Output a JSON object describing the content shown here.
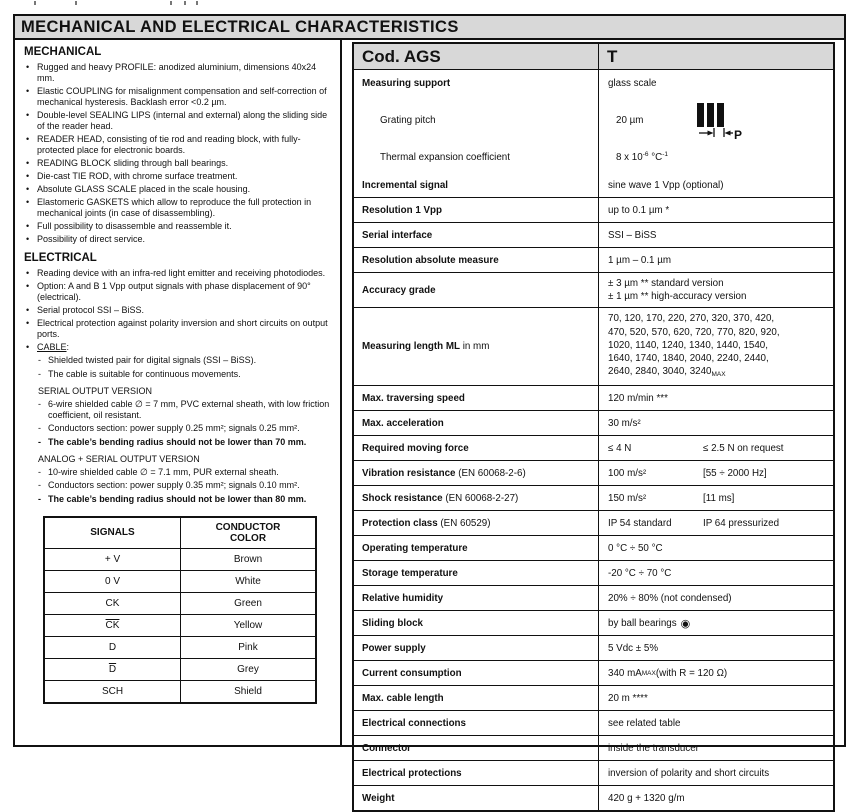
{
  "page": {
    "title": "MECHANICAL AND ELECTRICAL CHARACTERISTICS"
  },
  "glyphs": {
    "bullet": "•",
    "dash": "-",
    "ball_bearing": "◉"
  },
  "colors": {
    "header_bg": "#d8d8d8",
    "border": "#111111",
    "text": "#111111"
  },
  "left": {
    "mechanical": {
      "heading": "MECHANICAL",
      "bullets": [
        {
          "text": "Rugged and heavy PROFILE: anodized aluminium, dimensions 40x24 mm."
        },
        {
          "text": "Elastic COUPLING for misalignment compensation and self-correction of mechanical hysteresis. Backlash error <0.2 µm."
        },
        {
          "text": "Double-level SEALING LIPS (internal and external) along the sliding side of the reader head."
        },
        {
          "text": "READER HEAD, consisting of tie rod and reading block, with fully-protected place for electronic boards."
        },
        {
          "text": "READING BLOCK sliding through ball bearings."
        },
        {
          "text": "Die-cast TIE ROD, with chrome surface treatment."
        },
        {
          "text": "Absolute GLASS SCALE placed in the scale housing."
        },
        {
          "text": "Elastomeric GASKETS which allow to reproduce the full protection in mechanical joints (in case of disassembling)."
        },
        {
          "text": "Full possibility to disassemble and reassemble it."
        },
        {
          "text": "Possibility of direct service."
        }
      ]
    },
    "electrical": {
      "heading": "ELECTRICAL",
      "bullets": [
        {
          "text": "Reading device with an infra-red light emitter and receiving photodiodes."
        },
        {
          "text": "Option: A and B 1 Vpp output signals with phase displacement of 90° (electrical)."
        },
        {
          "text": "Serial protocol SSI – BiSS."
        },
        {
          "text": "Electrical protection against polarity inversion and short circuits on output ports."
        },
        {
          "underline": "CABLE",
          "text": ":"
        }
      ],
      "cable_items": [
        {
          "text": "Shielded twisted pair for digital signals (SSI – BiSS)."
        },
        {
          "text": "The cable is suitable for continuous movements."
        }
      ],
      "serial_section": {
        "heading": "SERIAL OUTPUT VERSION",
        "items": [
          {
            "text": "6-wire shielded cable ∅ = 7 mm, PVC external sheath, with low friction coefficient, oil resistant."
          },
          {
            "text": "Conductors section: power supply 0.25 mm²; signals 0.25 mm²."
          },
          {
            "text": "The cable’s bending radius should not be lower than 70 mm.",
            "bold": true
          }
        ]
      },
      "analog_section": {
        "heading": "ANALOG + SERIAL OUTPUT VERSION",
        "items": [
          {
            "text": "10-wire shielded cable ∅ = 7.1 mm, PUR external sheath."
          },
          {
            "text": "Conductors section: power supply 0.35 mm²; signals 0.10 mm²."
          },
          {
            "text": "The cable’s bending radius should not be lower than 80 mm.",
            "bold": true
          }
        ]
      }
    },
    "signals_table": {
      "headers": [
        "SIGNALS",
        "CONDUCTOR COLOR"
      ],
      "rows": [
        {
          "signal": "+ V",
          "color": "Brown"
        },
        {
          "signal": "0 V",
          "color": "White"
        },
        {
          "signal": "CK",
          "color": "Green"
        },
        {
          "signal": "CK",
          "overline": true,
          "color": "Yellow"
        },
        {
          "signal": "D",
          "color": "Pink"
        },
        {
          "signal": "D",
          "overline": true,
          "color": "Grey"
        },
        {
          "signal": "SCH",
          "color": "Shield"
        }
      ]
    }
  },
  "spec_table": {
    "header": {
      "code_label": "Cod. AGS",
      "model": "T"
    },
    "measuring_support": {
      "label_main": "Measuring support",
      "value_main": "glass scale",
      "label_pitch": "Grating pitch",
      "value_pitch": "20 µm",
      "pitch_icon_label": "P",
      "label_thermal": "Thermal expansion coefficient",
      "thermal_parts": {
        "base": "8 x 10",
        "sup1": "-6",
        "mid": " °C",
        "sup2": "-1"
      }
    },
    "rows": [
      {
        "label": "Incremental signal",
        "value": "sine wave 1 Vpp (optional)"
      },
      {
        "label": "Resolution 1 Vpp",
        "value": "up to 0.1 µm *"
      },
      {
        "label": "Serial interface",
        "value": "SSI – BiSS"
      },
      {
        "label": "Resolution absolute measure",
        "value": "1 µm  –  0.1 µm"
      },
      {
        "label": "Accuracy grade",
        "lines": [
          "± 3 µm ** standard version",
          "± 1 µm ** high-accuracy version"
        ]
      },
      {
        "label": "Measuring length ML",
        "label_note": " in mm",
        "lines": [
          "70, 120, 170, 220, 270, 320, 370, 420,",
          "470, 520, 570, 620, 720, 770, 820, 920,",
          "1020, 1140, 1240, 1340, 1440, 1540,",
          "1640, 1740, 1840, 2040, 2240, 2440,",
          "2640, 2840, 3040, 3240"
        ],
        "last_sub": "MAX"
      },
      {
        "label": "Max. traversing speed",
        "value": "120 m/min ***"
      },
      {
        "label": "Max. acceleration",
        "value": "30 m/s²"
      },
      {
        "label": "Required moving force",
        "value": "≤ 4 N",
        "value2": "≤ 2.5 N on request"
      },
      {
        "label": "Vibration resistance",
        "label_note": " (EN 60068-2-6)",
        "value": "100 m/s²",
        "value2": "[55 ÷ 2000 Hz]"
      },
      {
        "label": "Shock resistance",
        "label_note": " (EN 60068-2-27)",
        "value": "150 m/s²",
        "value2": "[11 ms]"
      },
      {
        "label": "Protection class",
        "label_note": " (EN 60529)",
        "value": "IP 54  standard",
        "value2": "IP 64  pressurized"
      },
      {
        "label": "Operating temperature",
        "value": "0 °C ÷ 50 °C"
      },
      {
        "label": "Storage temperature",
        "value": "-20 °C ÷ 70 °C"
      },
      {
        "label": "Relative humidity",
        "value": "20% ÷ 80%  (not condensed)"
      },
      {
        "label": "Sliding block",
        "value": "by ball bearings",
        "icon_glyph": "◉"
      },
      {
        "label": "Power supply",
        "value": "5 Vdc ± 5%"
      },
      {
        "label": "Current consumption",
        "value": "340 mA",
        "value_sub": "MAX",
        "value_post": " (with R = 120 Ω)"
      },
      {
        "label": "Max. cable length",
        "value": "20 m ****"
      },
      {
        "label": "Electrical connections",
        "value": "see related table"
      },
      {
        "label": "Connector",
        "value": "inside the transducer"
      },
      {
        "label": "Electrical protections",
        "value": "inversion of polarity and short circuits"
      },
      {
        "label": "Weight",
        "value": "420 g + 1320 g/m"
      }
    ]
  }
}
